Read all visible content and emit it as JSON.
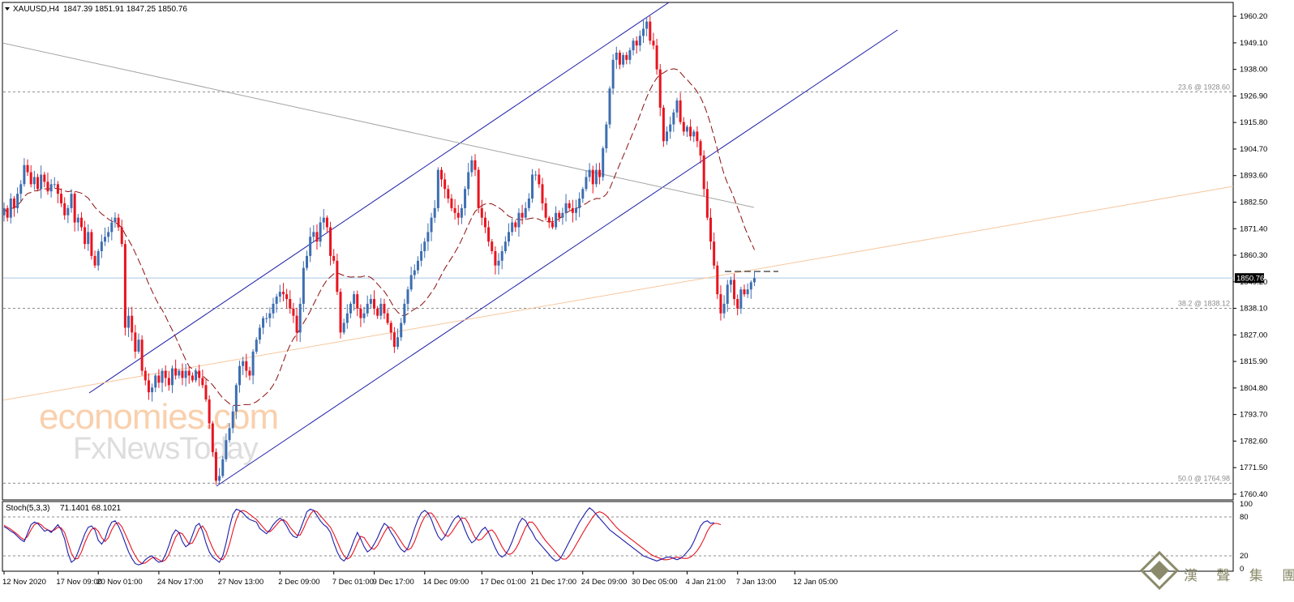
{
  "header": {
    "symbol": "XAUUSD,H4",
    "ohlc": "1847.39 1851.91 1847.25 1850.76",
    "marker_icon": "triangle-down-icon"
  },
  "colors": {
    "bull": "#3d6eb1",
    "bear": "#e8141f",
    "channel": "#1c1ca8",
    "trendline": "#a4a4a4",
    "ma": "#8a0f0f",
    "fib": "#8c8c8c",
    "stoch_main": "#1c1ca8",
    "stoch_signal": "#e8141f",
    "price_line": "#a8c8e0",
    "orange_line": "#f7c79e",
    "watermark": "#f4a96a",
    "watermark2": "#c7c7c7",
    "logo": "#8a8a6a"
  },
  "watermark": {
    "line1": "economies.com",
    "line2": "FxNewsToday"
  },
  "logo": {
    "text": "漢 聲 集 團"
  },
  "chart_data": {
    "type": "candlestick",
    "ylim": [
      1758.0,
      1966.0
    ],
    "yticks": [
      "1960.20",
      "1949.10",
      "1938.00",
      "1926.90",
      "1915.80",
      "1904.70",
      "1893.60",
      "1882.50",
      "1871.40",
      "1860.30",
      "1849.20",
      "1838.10",
      "1827.00",
      "1815.90",
      "1804.80",
      "1793.70",
      "1782.60",
      "1771.50",
      "1760.40"
    ],
    "current_price": "1850.76",
    "fib_levels": [
      {
        "label": "23.6 @ 1928.60",
        "value": 1928.6
      },
      {
        "label": "38.2 @ 1838.12",
        "value": 1838.12
      },
      {
        "label": "50.0 @ 1764.98",
        "value": 1764.98
      }
    ],
    "xtick_labels": [
      "12 Nov 2020",
      "17 Nov 09:00",
      "20 Nov 01:00",
      "24 Nov 17:00",
      "27 Nov 13:00",
      "2 Dec 09:00",
      "7 Dec 01:00",
      "9 Dec 17:00",
      "14 Dec 09:00",
      "17 Dec 01:00",
      "21 Dec 17:00",
      "24 Dec 09:00",
      "30 Dec 05:00",
      "4 Jan 21:00",
      "7 Jan 13:00",
      "12 Jan 05:00"
    ],
    "xtick_index": [
      0,
      16,
      28,
      46,
      64,
      82,
      98,
      110,
      125,
      142,
      157,
      172,
      187,
      203,
      218,
      235
    ],
    "closes": [
      1880,
      1876,
      1884,
      1880,
      1886,
      1890,
      1898,
      1895,
      1890,
      1893,
      1888,
      1894,
      1891,
      1887,
      1890,
      1890,
      1886,
      1882,
      1877,
      1880,
      1886,
      1874,
      1876,
      1872,
      1865,
      1870,
      1860,
      1856,
      1862,
      1866,
      1868,
      1870,
      1874,
      1876,
      1872,
      1865,
      1830,
      1835,
      1828,
      1820,
      1825,
      1812,
      1808,
      1803,
      1805,
      1810,
      1807,
      1812,
      1809,
      1806,
      1813,
      1810,
      1812,
      1809,
      1812,
      1810,
      1808,
      1812,
      1809,
      1806,
      1800,
      1790,
      1778,
      1766,
      1768,
      1775,
      1783,
      1788,
      1795,
      1806,
      1814,
      1816,
      1812,
      1810,
      1820,
      1825,
      1830,
      1834,
      1834,
      1836,
      1840,
      1843,
      1845,
      1844,
      1842,
      1838,
      1835,
      1828,
      1840,
      1855,
      1860,
      1868,
      1870,
      1866,
      1874,
      1876,
      1872,
      1860,
      1858,
      1845,
      1828,
      1832,
      1836,
      1840,
      1844,
      1838,
      1834,
      1836,
      1840,
      1842,
      1838,
      1835,
      1840,
      1836,
      1832,
      1828,
      1822,
      1826,
      1832,
      1840,
      1846,
      1852,
      1854,
      1858,
      1862,
      1866,
      1870,
      1876,
      1880,
      1896,
      1892,
      1888,
      1884,
      1880,
      1878,
      1876,
      1880,
      1888,
      1895,
      1900,
      1896,
      1880,
      1876,
      1872,
      1866,
      1862,
      1856,
      1858,
      1862,
      1866,
      1870,
      1874,
      1872,
      1878,
      1876,
      1880,
      1884,
      1894,
      1894,
      1890,
      1882,
      1876,
      1874,
      1872,
      1878,
      1876,
      1878,
      1882,
      1880,
      1878,
      1880,
      1884,
      1888,
      1893,
      1896,
      1890,
      1896,
      1893,
      1905,
      1915,
      1930,
      1942,
      1945,
      1940,
      1944,
      1942,
      1946,
      1950,
      1948,
      1952,
      1955,
      1958,
      1950,
      1948,
      1938,
      1922,
      1908,
      1912,
      1915,
      1920,
      1925,
      1916,
      1912,
      1914,
      1910,
      1912,
      1908,
      1902,
      1888,
      1876,
      1866,
      1856,
      1844,
      1836,
      1840,
      1848,
      1850,
      1842,
      1838,
      1846,
      1844,
      1846,
      1849,
      1850.76
    ],
    "stoch": {
      "name": "Stoch(5,3,3)",
      "values": "71.1401 68.1021",
      "ylim": [
        0,
        100
      ],
      "levels": [
        20,
        80
      ],
      "ytick_labels": [
        "100",
        "80",
        "20",
        "0"
      ],
      "main": [
        65,
        62,
        58,
        55,
        50,
        45,
        42,
        55,
        68,
        72,
        70,
        64,
        58,
        60,
        56,
        62,
        68,
        60,
        46,
        24,
        10,
        14,
        26,
        40,
        54,
        64,
        66,
        60,
        44,
        38,
        46,
        62,
        72,
        74,
        66,
        54,
        40,
        26,
        16,
        8,
        6,
        8,
        14,
        18,
        20,
        14,
        10,
        12,
        22,
        36,
        52,
        60,
        56,
        42,
        34,
        38,
        52,
        66,
        70,
        58,
        40,
        26,
        18,
        14,
        10,
        20,
        40,
        64,
        84,
        92,
        90,
        86,
        80,
        76,
        74,
        72,
        62,
        58,
        54,
        60,
        68,
        74,
        78,
        74,
        66,
        56,
        50,
        48,
        60,
        74,
        88,
        92,
        90,
        82,
        74,
        68,
        64,
        56,
        40,
        26,
        16,
        12,
        18,
        30,
        44,
        56,
        46,
        34,
        26,
        30,
        38,
        48,
        60,
        70,
        66,
        56,
        48,
        38,
        30,
        26,
        32,
        46,
        62,
        76,
        86,
        90,
        86,
        76,
        62,
        50,
        44,
        50,
        60,
        70,
        78,
        82,
        74,
        60,
        48,
        40,
        44,
        52,
        60,
        64,
        56,
        44,
        32,
        22,
        18,
        22,
        30,
        42,
        56,
        70,
        78,
        74,
        64,
        56,
        46,
        40,
        34,
        28,
        22,
        16,
        12,
        14,
        22,
        32,
        42,
        52,
        62,
        72,
        80,
        88,
        94,
        90,
        84,
        78,
        72,
        66,
        60,
        56,
        52,
        48,
        44,
        40,
        36,
        32,
        28,
        24,
        20,
        18,
        16,
        14,
        12,
        14,
        16,
        18,
        18,
        16,
        14,
        16,
        20,
        26,
        32,
        42,
        54,
        66,
        72,
        74,
        70,
        71
      ],
      "signal": [
        67,
        64,
        61,
        57,
        53,
        48,
        45,
        50,
        60,
        68,
        71,
        68,
        63,
        60,
        58,
        60,
        64,
        63,
        56,
        40,
        24,
        15,
        16,
        26,
        40,
        52,
        61,
        63,
        58,
        48,
        42,
        48,
        60,
        69,
        71,
        65,
        54,
        42,
        30,
        20,
        12,
        8,
        9,
        13,
        17,
        17,
        14,
        11,
        14,
        22,
        36,
        49,
        56,
        54,
        46,
        38,
        40,
        50,
        62,
        66,
        58,
        44,
        32,
        22,
        16,
        14,
        22,
        38,
        58,
        76,
        88,
        90,
        88,
        84,
        80,
        76,
        70,
        64,
        58,
        57,
        62,
        68,
        74,
        76,
        72,
        64,
        58,
        52,
        52,
        62,
        74,
        84,
        90,
        88,
        82,
        76,
        70,
        64,
        54,
        42,
        30,
        20,
        15,
        18,
        28,
        40,
        50,
        48,
        40,
        32,
        30,
        36,
        46,
        56,
        64,
        64,
        58,
        50,
        42,
        34,
        29,
        32,
        42,
        56,
        70,
        80,
        86,
        86,
        80,
        70,
        60,
        52,
        50,
        56,
        64,
        72,
        78,
        78,
        70,
        58,
        48,
        44,
        46,
        52,
        58,
        60,
        54,
        44,
        34,
        26,
        22,
        24,
        30,
        40,
        52,
        64,
        72,
        72,
        66,
        58,
        50,
        43,
        37,
        31,
        25,
        19,
        15,
        15,
        20,
        28,
        37,
        46,
        55,
        64,
        72,
        80,
        86,
        88,
        86,
        82,
        76,
        70,
        64,
        59,
        55,
        51,
        47,
        43,
        39,
        35,
        31,
        27,
        23,
        20,
        18,
        16,
        14,
        14,
        15,
        17,
        18,
        17,
        16,
        16,
        18,
        22,
        28,
        36,
        46,
        58,
        66,
        70,
        70,
        68
      ]
    }
  }
}
